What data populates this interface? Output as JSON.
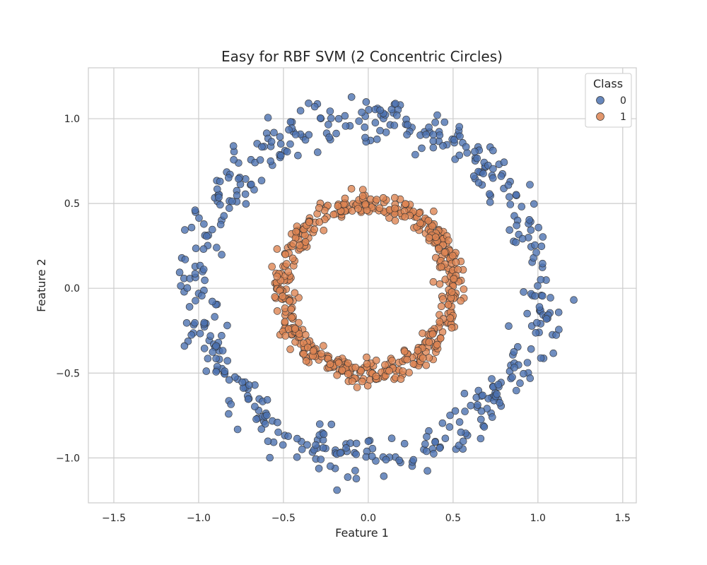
{
  "chart_data": {
    "type": "scatter",
    "title": "Easy for RBF SVM (2 Concentric Circles)",
    "xlabel": "Feature 1",
    "ylabel": "Feature 2",
    "xlim": [
      -1.65,
      1.58
    ],
    "ylim": [
      -1.265,
      1.3
    ],
    "xticks": [
      -1.5,
      -1.0,
      -0.5,
      0.0,
      0.5,
      1.0,
      1.5
    ],
    "xtick_labels": [
      "−1.5",
      "−1.0",
      "−0.5",
      "0.0",
      "0.5",
      "1.0",
      "1.5"
    ],
    "yticks": [
      -1.0,
      -0.5,
      0.0,
      0.5,
      1.0
    ],
    "ytick_labels": [
      "−1.0",
      "−0.5",
      "0.0",
      "0.5",
      "1.0"
    ],
    "grid": true,
    "legend": {
      "title": "Class",
      "placement": "top-right",
      "entries": [
        "0",
        "1"
      ]
    },
    "series": [
      {
        "name": "0",
        "color": "#4c72b0",
        "radius_mean": 1.0,
        "radius_noise": 0.07,
        "n_points": 500
      },
      {
        "name": "1",
        "color": "#dd8452",
        "radius_mean": 0.5,
        "radius_noise": 0.035,
        "n_points": 500
      }
    ]
  },
  "colors": {
    "class_0": "#4c72b0",
    "class_1": "#dd8452",
    "grid": "#cccccc",
    "frame": "#cccccc",
    "edge": "#333333"
  }
}
